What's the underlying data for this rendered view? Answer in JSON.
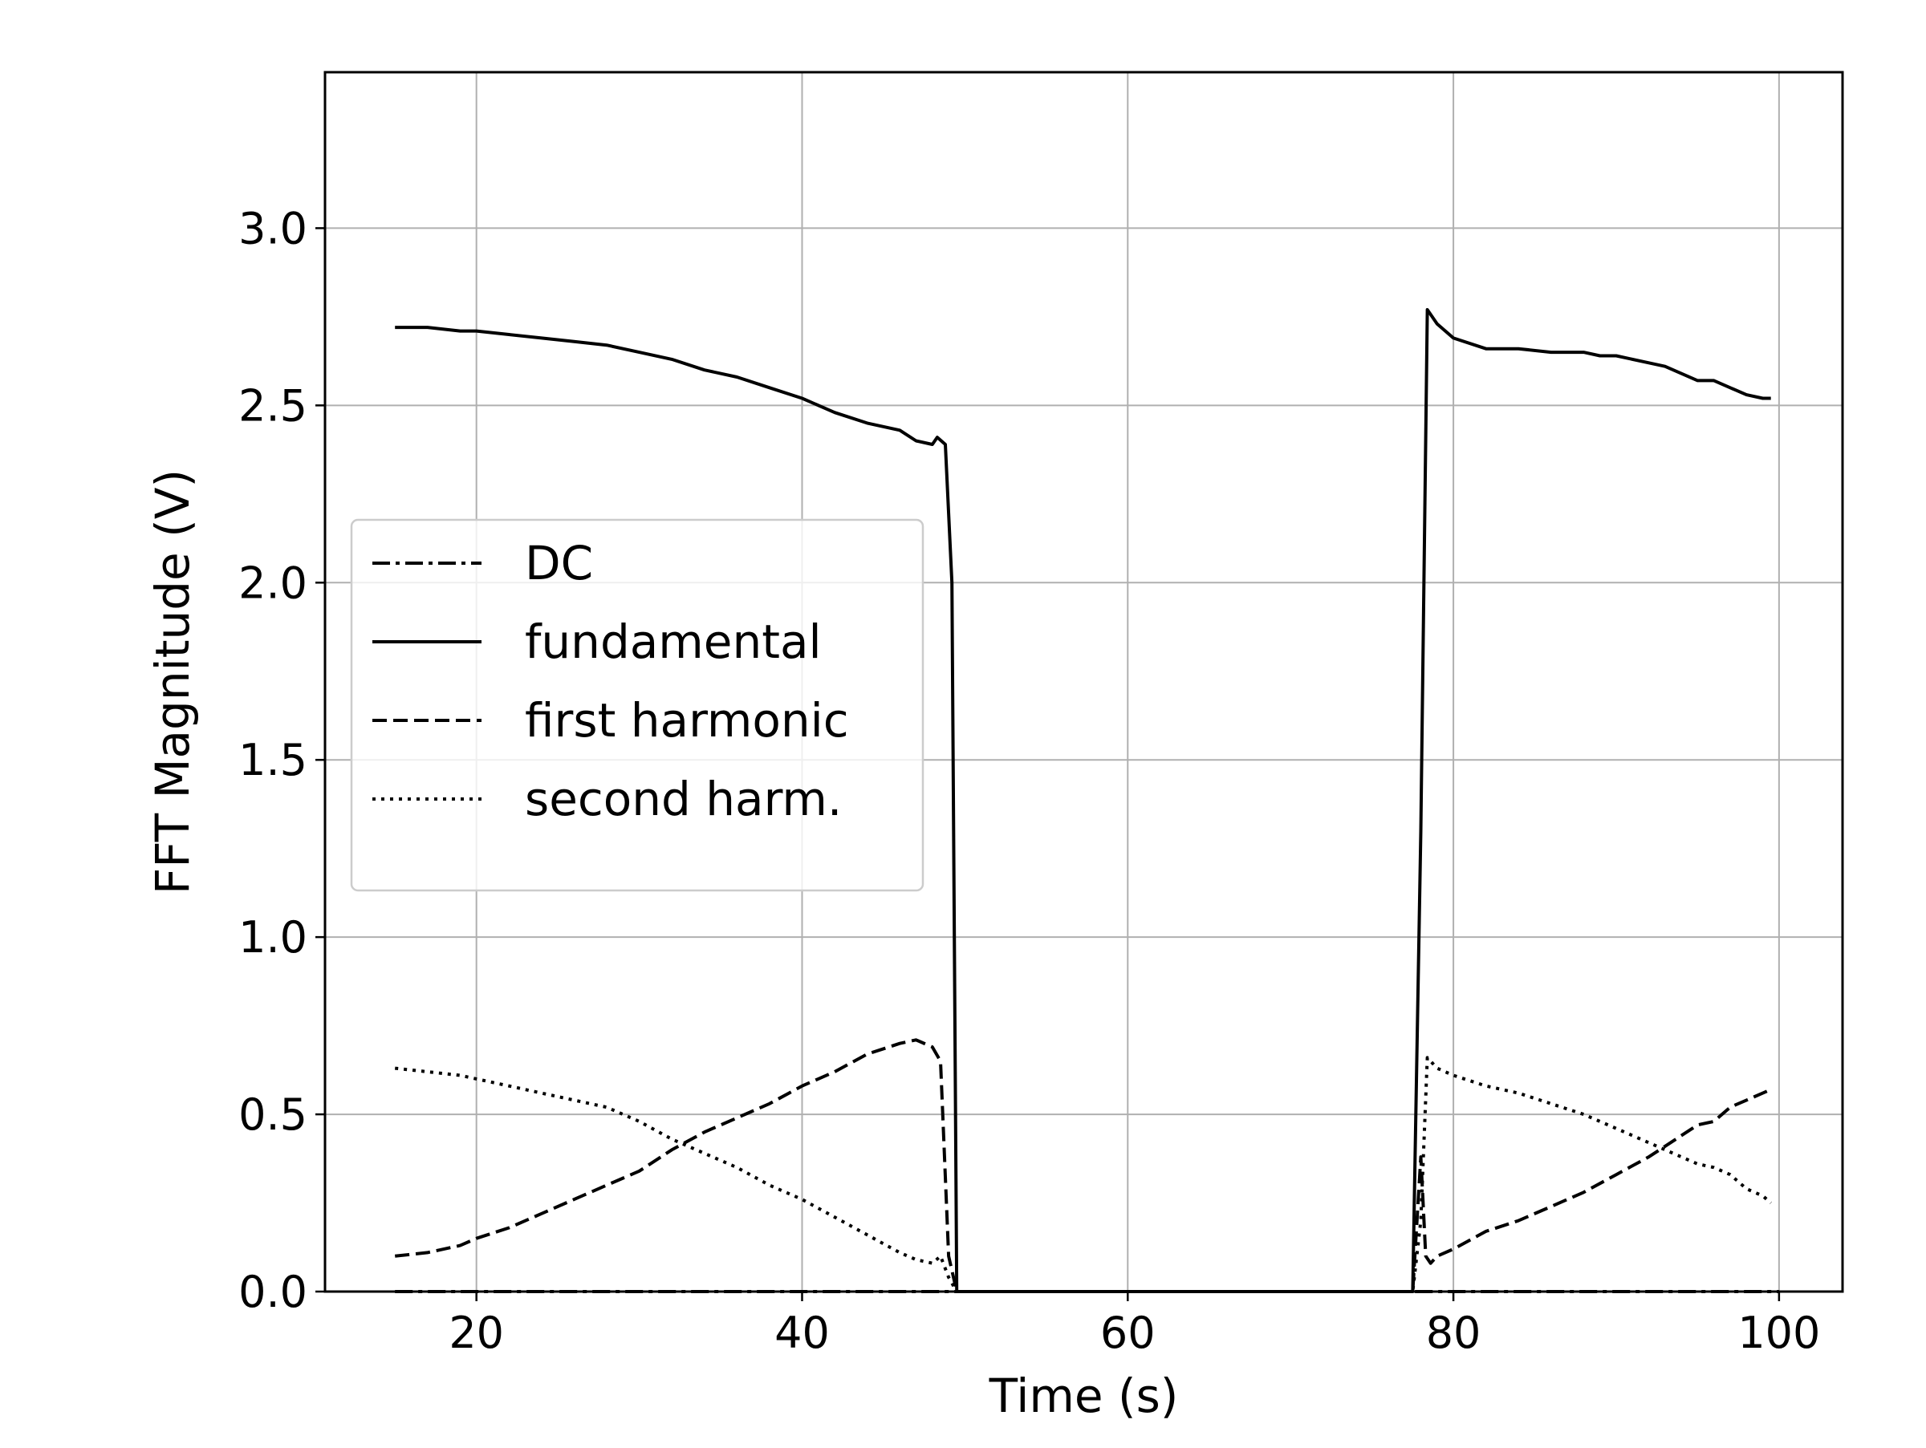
{
  "chart_data": {
    "type": "line",
    "title": "",
    "xlabel": "Time (s)",
    "ylabel": "FFT Magnitude (V)",
    "xlim": [
      10.7,
      103.9
    ],
    "ylim": [
      0,
      3.44
    ],
    "xticks": [
      20,
      40,
      60,
      80,
      100
    ],
    "yticks": [
      0.0,
      0.5,
      1.0,
      1.5,
      2.0,
      2.5,
      3.0
    ],
    "xtick_labels": [
      "20",
      "40",
      "60",
      "80",
      "100"
    ],
    "ytick_labels": [
      "0.0",
      "0.5",
      "1.0",
      "1.5",
      "2.0",
      "2.5",
      "3.0"
    ],
    "grid": true,
    "legend_position": "center-left",
    "colors": {
      "line": "#000000",
      "grid": "#b0b0b0",
      "legend_border": "#cccccc"
    },
    "series": [
      {
        "name": "DC",
        "style": "dashdot",
        "x": [
          15,
          49.5,
          77.6,
          100
        ],
        "y": [
          0,
          0,
          0,
          0
        ]
      },
      {
        "name": "fundamental",
        "style": "solid",
        "x": [
          15,
          17,
          19,
          20,
          22,
          24,
          26,
          28,
          30,
          32,
          34,
          36,
          38,
          40,
          42,
          44,
          46,
          47,
          48,
          48.3,
          48.8,
          49.2,
          49.5,
          50,
          55,
          60,
          65,
          70,
          75,
          77.5,
          78,
          78.4,
          79,
          80,
          82,
          84,
          86,
          88,
          89,
          90,
          92,
          93,
          94,
          95,
          96,
          97,
          98,
          99,
          99.5
        ],
        "y": [
          2.72,
          2.72,
          2.71,
          2.71,
          2.7,
          2.69,
          2.68,
          2.67,
          2.65,
          2.63,
          2.6,
          2.58,
          2.55,
          2.52,
          2.48,
          2.45,
          2.43,
          2.4,
          2.39,
          2.41,
          2.39,
          2.0,
          0.0,
          0.0,
          0.0,
          0.0,
          0.0,
          0.0,
          0.0,
          0.0,
          1.3,
          2.77,
          2.73,
          2.69,
          2.66,
          2.66,
          2.65,
          2.65,
          2.64,
          2.64,
          2.62,
          2.61,
          2.59,
          2.57,
          2.57,
          2.55,
          2.53,
          2.52,
          2.52
        ]
      },
      {
        "name": "first harmonic",
        "style": "dashed",
        "x": [
          15,
          17,
          19,
          20,
          22,
          24,
          26,
          28,
          30,
          32,
          34,
          36,
          38,
          40,
          42,
          44,
          46,
          47,
          48,
          48.5,
          49.0,
          49.5,
          77.5,
          78.0,
          78.3,
          78.6,
          79,
          80,
          82,
          84,
          86,
          88,
          90,
          92,
          94,
          95,
          96,
          97,
          98,
          99,
          99.5
        ],
        "y": [
          0.1,
          0.11,
          0.13,
          0.15,
          0.18,
          0.22,
          0.26,
          0.3,
          0.34,
          0.4,
          0.45,
          0.49,
          0.53,
          0.58,
          0.62,
          0.67,
          0.7,
          0.71,
          0.69,
          0.65,
          0.1,
          0.0,
          0.0,
          0.38,
          0.1,
          0.08,
          0.1,
          0.12,
          0.17,
          0.2,
          0.24,
          0.28,
          0.33,
          0.38,
          0.44,
          0.47,
          0.48,
          0.52,
          0.54,
          0.56,
          0.57
        ]
      },
      {
        "name": "second harm.",
        "style": "dotted",
        "x": [
          15,
          17,
          19,
          20,
          22,
          24,
          26,
          28,
          30,
          32,
          34,
          36,
          38,
          40,
          42,
          44,
          46,
          47,
          48,
          48.5,
          49.0,
          49.5,
          77.5,
          78.0,
          78.4,
          79,
          80,
          82,
          84,
          86,
          88,
          90,
          92,
          94,
          95,
          96,
          97,
          98,
          99,
          99.5
        ],
        "y": [
          0.63,
          0.62,
          0.61,
          0.6,
          0.58,
          0.56,
          0.54,
          0.52,
          0.48,
          0.43,
          0.39,
          0.35,
          0.3,
          0.26,
          0.21,
          0.16,
          0.11,
          0.09,
          0.08,
          0.1,
          0.04,
          0.0,
          0.0,
          0.2,
          0.66,
          0.63,
          0.61,
          0.58,
          0.56,
          0.53,
          0.5,
          0.46,
          0.42,
          0.38,
          0.36,
          0.35,
          0.33,
          0.29,
          0.27,
          0.25
        ]
      }
    ]
  }
}
